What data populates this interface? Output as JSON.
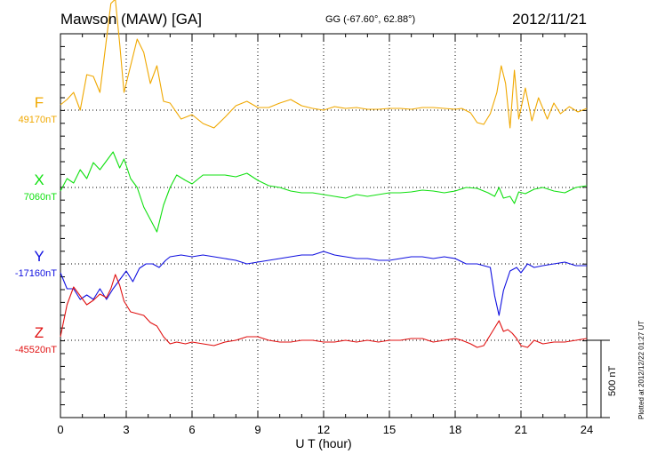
{
  "header": {
    "title": "Mawson (MAW)  [GA]",
    "coords": "GG (-67.60°,  62.88°)",
    "date": "2012/11/21"
  },
  "side_note": "Plotted at 2012/12/22 01:27 UT",
  "chart_data": {
    "type": "line",
    "xlabel": "U T (hour)",
    "xlim": [
      0,
      24
    ],
    "x_ticks": [
      "0",
      "3",
      "6",
      "9",
      "12",
      "15",
      "18",
      "21",
      "24"
    ],
    "scale_bar": "500 nT",
    "series": [
      {
        "name": "F",
        "baseline": "49170nT",
        "color": "#f0a800",
        "points": [
          [
            0,
            -6
          ],
          [
            0.3,
            -12
          ],
          [
            0.6,
            -20
          ],
          [
            0.9,
            0
          ],
          [
            1.2,
            -40
          ],
          [
            1.5,
            -38
          ],
          [
            1.8,
            -20
          ],
          [
            2.0,
            -60
          ],
          [
            2.3,
            -120
          ],
          [
            2.5,
            -125
          ],
          [
            2.7,
            -75
          ],
          [
            2.9,
            -20
          ],
          [
            3.2,
            -50
          ],
          [
            3.5,
            -80
          ],
          [
            3.8,
            -65
          ],
          [
            4.1,
            -30
          ],
          [
            4.4,
            -50
          ],
          [
            4.7,
            -10
          ],
          [
            5.0,
            -8
          ],
          [
            5.5,
            10
          ],
          [
            6.0,
            5
          ],
          [
            6.5,
            15
          ],
          [
            7.0,
            20
          ],
          [
            7.5,
            8
          ],
          [
            8.0,
            -5
          ],
          [
            8.5,
            -10
          ],
          [
            9.0,
            -3
          ],
          [
            9.5,
            -3
          ],
          [
            10.0,
            -8
          ],
          [
            10.5,
            -12
          ],
          [
            11.0,
            -5
          ],
          [
            11.5,
            -2
          ],
          [
            12.0,
            0
          ],
          [
            12.5,
            -4
          ],
          [
            13.0,
            -2
          ],
          [
            13.5,
            -3
          ],
          [
            14.0,
            -1
          ],
          [
            14.5,
            -1
          ],
          [
            15.0,
            -2
          ],
          [
            15.5,
            -2
          ],
          [
            16.0,
            -1
          ],
          [
            16.5,
            -3
          ],
          [
            17.0,
            -3
          ],
          [
            17.5,
            -2
          ],
          [
            18.0,
            -1
          ],
          [
            18.3,
            -2
          ],
          [
            18.7,
            3
          ],
          [
            19.0,
            14
          ],
          [
            19.3,
            16
          ],
          [
            19.6,
            4
          ],
          [
            19.9,
            -20
          ],
          [
            20.1,
            -50
          ],
          [
            20.3,
            -30
          ],
          [
            20.5,
            20
          ],
          [
            20.7,
            -45
          ],
          [
            20.9,
            10
          ],
          [
            21.2,
            -25
          ],
          [
            21.5,
            12
          ],
          [
            21.8,
            -14
          ],
          [
            22.2,
            10
          ],
          [
            22.5,
            -8
          ],
          [
            22.8,
            4
          ],
          [
            23.2,
            -4
          ],
          [
            23.6,
            2
          ],
          [
            24.0,
            -2
          ]
        ]
      },
      {
        "name": "X",
        "baseline": "7060nT",
        "color": "#10e010",
        "points": [
          [
            0,
            4
          ],
          [
            0.3,
            -10
          ],
          [
            0.6,
            -5
          ],
          [
            0.9,
            -20
          ],
          [
            1.2,
            -10
          ],
          [
            1.5,
            -28
          ],
          [
            1.8,
            -20
          ],
          [
            2.1,
            -30
          ],
          [
            2.4,
            -40
          ],
          [
            2.7,
            -22
          ],
          [
            2.9,
            -32
          ],
          [
            3.2,
            -10
          ],
          [
            3.5,
            0
          ],
          [
            3.8,
            22
          ],
          [
            4.1,
            36
          ],
          [
            4.4,
            50
          ],
          [
            4.7,
            20
          ],
          [
            5.0,
            0
          ],
          [
            5.3,
            -14
          ],
          [
            5.7,
            -8
          ],
          [
            6.0,
            -4
          ],
          [
            6.5,
            -14
          ],
          [
            7.0,
            -14
          ],
          [
            7.5,
            -14
          ],
          [
            8.0,
            -12
          ],
          [
            8.5,
            -16
          ],
          [
            9.0,
            -8
          ],
          [
            9.5,
            -2
          ],
          [
            10.0,
            0
          ],
          [
            10.5,
            4
          ],
          [
            11.0,
            6
          ],
          [
            11.5,
            6
          ],
          [
            12.0,
            8
          ],
          [
            12.5,
            10
          ],
          [
            13.0,
            12
          ],
          [
            13.5,
            8
          ],
          [
            14.0,
            10
          ],
          [
            14.5,
            8
          ],
          [
            15.0,
            6
          ],
          [
            15.5,
            6
          ],
          [
            16.0,
            5
          ],
          [
            16.5,
            3
          ],
          [
            17.0,
            4
          ],
          [
            17.5,
            6
          ],
          [
            18.0,
            4
          ],
          [
            18.5,
            0
          ],
          [
            19.0,
            1
          ],
          [
            19.5,
            6
          ],
          [
            19.8,
            10
          ],
          [
            20.0,
            0
          ],
          [
            20.2,
            12
          ],
          [
            20.5,
            10
          ],
          [
            20.7,
            18
          ],
          [
            20.9,
            5
          ],
          [
            21.2,
            7
          ],
          [
            21.6,
            2
          ],
          [
            22.0,
            0
          ],
          [
            22.5,
            4
          ],
          [
            23.0,
            6
          ],
          [
            23.5,
            0
          ],
          [
            24.0,
            -2
          ]
        ]
      },
      {
        "name": "Y",
        "baseline": "-17160nT",
        "color": "#1010e0",
        "points": [
          [
            0,
            10
          ],
          [
            0.3,
            28
          ],
          [
            0.6,
            28
          ],
          [
            0.9,
            40
          ],
          [
            1.2,
            35
          ],
          [
            1.5,
            40
          ],
          [
            1.8,
            28
          ],
          [
            2.1,
            40
          ],
          [
            2.4,
            28
          ],
          [
            2.7,
            18
          ],
          [
            3.0,
            8
          ],
          [
            3.3,
            20
          ],
          [
            3.6,
            5
          ],
          [
            3.9,
            0
          ],
          [
            4.2,
            0
          ],
          [
            4.5,
            4
          ],
          [
            4.8,
            -4
          ],
          [
            5.0,
            -8
          ],
          [
            5.5,
            -10
          ],
          [
            6.0,
            -8
          ],
          [
            6.5,
            -10
          ],
          [
            7.0,
            -8
          ],
          [
            7.5,
            -6
          ],
          [
            8.0,
            -4
          ],
          [
            8.5,
            0
          ],
          [
            9.0,
            -2
          ],
          [
            9.5,
            -4
          ],
          [
            10.0,
            -6
          ],
          [
            10.5,
            -8
          ],
          [
            11.0,
            -10
          ],
          [
            11.5,
            -10
          ],
          [
            12.0,
            -14
          ],
          [
            12.5,
            -10
          ],
          [
            13.0,
            -8
          ],
          [
            13.5,
            -6
          ],
          [
            14.0,
            -6
          ],
          [
            14.5,
            -4
          ],
          [
            15.0,
            -4
          ],
          [
            15.5,
            -6
          ],
          [
            16.0,
            -8
          ],
          [
            16.5,
            -8
          ],
          [
            17.0,
            -6
          ],
          [
            17.5,
            -8
          ],
          [
            18.0,
            -6
          ],
          [
            18.5,
            0
          ],
          [
            19.0,
            0
          ],
          [
            19.3,
            2
          ],
          [
            19.6,
            4
          ],
          [
            19.8,
            36
          ],
          [
            20.0,
            58
          ],
          [
            20.2,
            30
          ],
          [
            20.5,
            8
          ],
          [
            20.8,
            4
          ],
          [
            21.0,
            10
          ],
          [
            21.3,
            0
          ],
          [
            21.6,
            4
          ],
          [
            22.0,
            2
          ],
          [
            22.5,
            0
          ],
          [
            23.0,
            -2
          ],
          [
            23.5,
            2
          ],
          [
            24.0,
            2
          ]
        ]
      },
      {
        "name": "Z",
        "baseline": "-45520nT",
        "color": "#e01010",
        "points": [
          [
            0,
            -4
          ],
          [
            0.3,
            -40
          ],
          [
            0.6,
            -60
          ],
          [
            0.9,
            -50
          ],
          [
            1.2,
            -40
          ],
          [
            1.5,
            -45
          ],
          [
            1.8,
            -52
          ],
          [
            2.1,
            -48
          ],
          [
            2.3,
            -58
          ],
          [
            2.5,
            -74
          ],
          [
            2.7,
            -62
          ],
          [
            2.9,
            -44
          ],
          [
            3.2,
            -32
          ],
          [
            3.5,
            -30
          ],
          [
            3.8,
            -28
          ],
          [
            4.1,
            -20
          ],
          [
            4.4,
            -16
          ],
          [
            4.7,
            -4
          ],
          [
            5.0,
            4
          ],
          [
            5.3,
            2
          ],
          [
            5.7,
            4
          ],
          [
            6.0,
            2
          ],
          [
            6.5,
            4
          ],
          [
            7.0,
            6
          ],
          [
            7.5,
            2
          ],
          [
            8.0,
            0
          ],
          [
            8.5,
            -4
          ],
          [
            9.0,
            -4
          ],
          [
            9.5,
            0
          ],
          [
            10.0,
            2
          ],
          [
            10.5,
            2
          ],
          [
            11.0,
            0
          ],
          [
            11.5,
            0
          ],
          [
            12.0,
            2
          ],
          [
            12.5,
            2
          ],
          [
            13.0,
            0
          ],
          [
            13.5,
            2
          ],
          [
            14.0,
            0
          ],
          [
            14.5,
            2
          ],
          [
            15.0,
            0
          ],
          [
            15.5,
            0
          ],
          [
            16.0,
            -2
          ],
          [
            16.5,
            -2
          ],
          [
            17.0,
            2
          ],
          [
            17.5,
            0
          ],
          [
            18.0,
            -2
          ],
          [
            18.3,
            0
          ],
          [
            18.7,
            4
          ],
          [
            19.0,
            8
          ],
          [
            19.3,
            6
          ],
          [
            19.6,
            -6
          ],
          [
            19.8,
            -14
          ],
          [
            20.0,
            -22
          ],
          [
            20.2,
            -10
          ],
          [
            20.4,
            -12
          ],
          [
            20.6,
            -8
          ],
          [
            20.8,
            -2
          ],
          [
            21.0,
            6
          ],
          [
            21.3,
            8
          ],
          [
            21.6,
            0
          ],
          [
            22.0,
            4
          ],
          [
            22.5,
            2
          ],
          [
            23.0,
            2
          ],
          [
            23.5,
            0
          ],
          [
            24.0,
            -2
          ]
        ]
      }
    ]
  }
}
